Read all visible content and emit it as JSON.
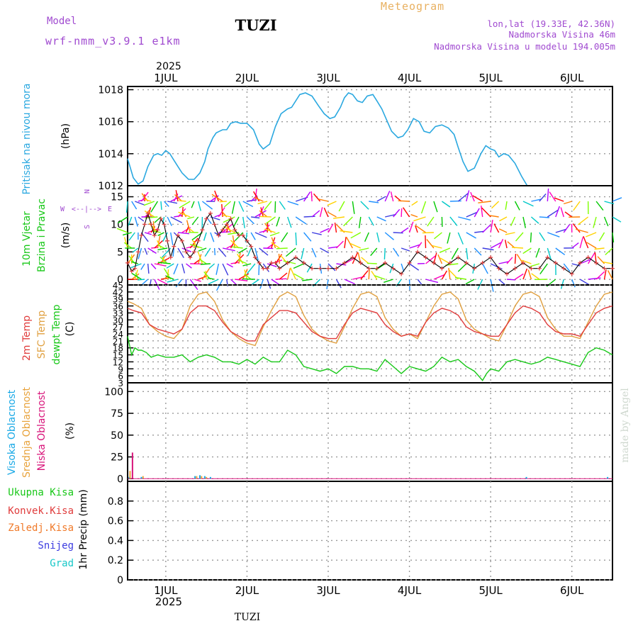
{
  "header": {
    "model_label": "Model",
    "model_name": "wrf-nmm_v3.9.1 e1km",
    "station": "TUZI",
    "product": "Meteogram",
    "lonlat": "lon,lat (19.33E, 42.36N)",
    "elevation": "Nadmorska Visina 46m",
    "model_elevation": "Nadmorska Visina u modelu 194.005m"
  },
  "footer": {
    "station": "TUZI",
    "credit": "made by Angel"
  },
  "colors": {
    "pressure": "#2aa8e0",
    "t2m": "#e03c3c",
    "sfc": "#e0a040",
    "dewpt": "#18c818",
    "cloud_high": "#19a9e6",
    "cloud_mid": "#e8a33c",
    "cloud_low": "#d8147a",
    "precip_total": "#18c818",
    "precip_conv": "#e03c3c",
    "precip_frozen": "#f07a2a",
    "snow": "#3c3ce0",
    "hail": "#18c8c8",
    "header_purple": "#a04ad0",
    "header_gold": "#e8b060"
  },
  "chart_data": [
    {
      "id": "pressure",
      "type": "line",
      "ylabel_lines": [
        "Pritisak na nivou mora",
        "(hPa)"
      ],
      "ylim": [
        1012,
        1018.2
      ],
      "yticks": [
        1012,
        1014,
        1016,
        1018
      ],
      "xlim": [
        0.53,
        6.5
      ],
      "top_year": "2025",
      "top_ticks": [
        "1JUL",
        "2JUL",
        "3JUL",
        "4JUL",
        "5JUL",
        "6JUL"
      ],
      "series": [
        {
          "x": [
            0.53,
            0.6,
            0.66,
            0.72,
            0.78,
            0.85,
            0.9,
            0.95,
            1.0,
            1.05,
            1.1,
            1.15,
            1.2,
            1.28,
            1.35,
            1.42,
            1.48,
            1.52,
            1.58,
            1.62,
            1.66,
            1.7,
            1.75,
            1.8,
            1.86,
            1.92,
            2.0,
            2.08,
            2.15,
            2.2,
            2.28,
            2.35,
            2.42,
            2.5,
            2.55,
            2.6,
            2.65,
            2.72,
            2.8,
            2.88,
            2.95,
            3.02,
            3.08,
            3.15,
            3.2,
            3.25,
            3.3,
            3.36,
            3.42,
            3.48,
            3.55,
            3.6,
            3.66,
            3.72,
            3.78,
            3.86,
            3.92,
            3.98,
            4.05,
            4.12,
            4.18,
            4.25,
            4.32,
            4.4,
            4.48,
            4.55,
            4.6,
            4.66,
            4.72,
            4.8,
            4.88,
            4.94,
            5.0,
            5.05,
            5.1,
            5.16,
            5.22,
            5.3,
            5.38,
            5.45,
            5.5,
            5.55,
            5.6,
            5.66,
            5.72,
            5.8,
            5.88,
            5.94,
            6.0,
            6.06,
            6.12,
            6.2,
            6.28,
            6.36,
            6.42,
            6.5
          ],
          "y": [
            1013.7,
            1012.5,
            1012.1,
            1012.3,
            1013.2,
            1013.9,
            1014.0,
            1013.9,
            1014.2,
            1014.0,
            1013.6,
            1013.2,
            1012.8,
            1012.4,
            1012.4,
            1012.8,
            1013.5,
            1014.3,
            1015.0,
            1015.3,
            1015.4,
            1015.5,
            1015.5,
            1015.9,
            1016.0,
            1015.9,
            1015.9,
            1015.5,
            1014.6,
            1014.3,
            1014.6,
            1015.7,
            1016.5,
            1016.8,
            1016.9,
            1017.3,
            1017.7,
            1017.8,
            1017.6,
            1017.0,
            1016.5,
            1016.2,
            1016.3,
            1016.9,
            1017.5,
            1017.8,
            1017.7,
            1017.3,
            1017.2,
            1017.6,
            1017.7,
            1017.3,
            1016.8,
            1016.1,
            1015.4,
            1015.0,
            1015.1,
            1015.5,
            1016.2,
            1016.0,
            1015.4,
            1015.3,
            1015.7,
            1015.8,
            1015.6,
            1015.2,
            1014.4,
            1013.5,
            1012.9,
            1013.1,
            1014.0,
            1014.5,
            1014.3,
            1014.2,
            1013.8,
            1014.0,
            1013.9,
            1013.4,
            1012.6,
            1012.0,
            1012.0,
            1012.0,
            1012.0,
            1012.0,
            1012.0,
            1012.0,
            1012.0,
            1012.0,
            1012.0,
            1012.0,
            1012.0,
            1012.0,
            1012.0,
            1012.0,
            1012.0,
            1012.0
          ]
        }
      ]
    },
    {
      "id": "wind",
      "type": "line+vectors",
      "ylabel_lines": [
        "10m Vjetar",
        "Brzina i Pravac",
        "(m/s)"
      ],
      "compass": {
        "n": "N",
        "e": "E",
        "w": "W",
        "s": "S",
        "arrow": "<--|-->"
      },
      "ylim": [
        -1,
        17
      ],
      "yticks": [
        0,
        5,
        10,
        15
      ],
      "xlim": [
        0.53,
        6.5
      ],
      "series": [
        {
          "name": "speed",
          "x": [
            0.53,
            0.58,
            0.62,
            0.66,
            0.7,
            0.74,
            0.78,
            0.82,
            0.86,
            0.9,
            0.94,
            0.98,
            1.02,
            1.06,
            1.1,
            1.15,
            1.2,
            1.25,
            1.3,
            1.35,
            1.4,
            1.45,
            1.5,
            1.55,
            1.6,
            1.65,
            1.7,
            1.75,
            1.8,
            1.85,
            1.9,
            1.95,
            2.0,
            2.05,
            2.1,
            2.15,
            2.2,
            2.25,
            2.3,
            2.35,
            2.4,
            2.5,
            2.6,
            2.7,
            2.8,
            2.9,
            3.0,
            3.1,
            3.2,
            3.3,
            3.4,
            3.5,
            3.6,
            3.7,
            3.8,
            3.9,
            4.0,
            4.1,
            4.2,
            4.3,
            4.4,
            4.5,
            4.6,
            4.7,
            4.8,
            4.9,
            5.0,
            5.1,
            5.2,
            5.3,
            5.4,
            5.5,
            5.6,
            5.7,
            5.8,
            5.9,
            6.0,
            6.1,
            6.2,
            6.3,
            6.4,
            6.5
          ],
          "y": [
            3,
            1.5,
            2,
            5,
            8,
            10,
            12,
            10,
            8,
            9,
            11,
            10,
            7,
            4,
            6,
            8,
            7,
            5,
            4,
            5,
            7,
            9,
            11,
            12,
            10,
            8,
            9,
            10,
            11,
            9,
            8,
            8,
            7,
            6,
            4,
            3,
            2,
            2,
            3,
            3,
            2,
            3,
            4,
            3,
            2,
            2,
            2,
            2,
            3,
            4,
            3,
            2,
            2,
            3,
            2,
            1,
            3,
            5,
            4,
            3,
            2,
            3,
            4,
            3,
            2,
            3,
            4,
            2,
            1,
            2,
            3,
            2,
            2,
            4,
            3,
            2,
            1,
            3,
            4,
            3,
            2,
            2
          ]
        }
      ]
    },
    {
      "id": "temperature",
      "type": "line",
      "ylabel_lines": [
        "2m Temp",
        "SFC Temp",
        "dewpt Temp",
        "(C)"
      ],
      "ylim": [
        3,
        45
      ],
      "yticks": [
        3,
        6,
        9,
        12,
        15,
        18,
        21,
        24,
        27,
        30,
        33,
        36,
        39,
        42,
        45
      ],
      "xlim": [
        0.53,
        6.5
      ],
      "series": [
        {
          "name": "t2m",
          "x": [
            0.53,
            0.6,
            0.7,
            0.8,
            0.9,
            1.0,
            1.1,
            1.2,
            1.3,
            1.4,
            1.5,
            1.6,
            1.7,
            1.8,
            1.9,
            2.0,
            2.1,
            2.2,
            2.3,
            2.4,
            2.5,
            2.6,
            2.7,
            2.8,
            2.9,
            3.0,
            3.1,
            3.2,
            3.3,
            3.4,
            3.5,
            3.6,
            3.7,
            3.8,
            3.9,
            4.0,
            4.1,
            4.2,
            4.3,
            4.4,
            4.5,
            4.6,
            4.7,
            4.8,
            4.9,
            5.0,
            5.1,
            5.2,
            5.3,
            5.4,
            5.5,
            5.6,
            5.7,
            5.8,
            5.9,
            6.0,
            6.1,
            6.2,
            6.3,
            6.4,
            6.5
          ],
          "y": [
            35,
            34,
            33,
            28,
            26,
            25,
            24,
            26,
            33,
            36,
            36,
            34,
            29,
            25,
            23,
            21,
            21,
            28,
            31,
            34,
            34,
            33,
            29,
            25,
            23,
            22,
            22,
            28,
            33,
            35,
            34,
            33,
            28,
            25,
            23,
            24,
            23,
            29,
            33,
            35,
            34,
            32,
            27,
            25,
            24,
            23,
            23,
            28,
            33,
            36,
            35,
            33,
            28,
            25,
            24,
            24,
            23,
            28,
            33,
            35,
            36
          ]
        },
        {
          "name": "sfc",
          "x": [
            0.53,
            0.6,
            0.7,
            0.8,
            0.9,
            1.0,
            1.1,
            1.2,
            1.3,
            1.4,
            1.5,
            1.6,
            1.7,
            1.8,
            1.9,
            2.0,
            2.1,
            2.2,
            2.3,
            2.4,
            2.5,
            2.6,
            2.7,
            2.8,
            2.9,
            3.0,
            3.1,
            3.2,
            3.3,
            3.4,
            3.5,
            3.6,
            3.7,
            3.8,
            3.9,
            4.0,
            4.1,
            4.2,
            4.3,
            4.4,
            4.5,
            4.6,
            4.7,
            4.8,
            4.9,
            5.0,
            5.1,
            5.2,
            5.3,
            5.4,
            5.5,
            5.6,
            5.7,
            5.8,
            5.9,
            6.0,
            6.1,
            6.2,
            6.3,
            6.4,
            6.5
          ],
          "y": [
            38,
            37,
            35,
            28,
            25,
            23,
            22,
            26,
            36,
            41,
            42,
            38,
            30,
            25,
            22,
            20,
            19,
            27,
            34,
            40,
            42,
            40,
            32,
            26,
            23,
            21,
            20,
            27,
            35,
            41,
            42,
            40,
            31,
            26,
            23,
            24,
            22,
            29,
            36,
            41,
            42,
            39,
            30,
            26,
            24,
            22,
            21,
            28,
            36,
            41,
            42,
            40,
            31,
            26,
            23,
            23,
            22,
            29,
            36,
            41,
            42
          ]
        },
        {
          "name": "dewpt",
          "x": [
            0.53,
            0.58,
            0.62,
            0.66,
            0.7,
            0.76,
            0.82,
            0.9,
            1.0,
            1.1,
            1.2,
            1.3,
            1.4,
            1.5,
            1.6,
            1.7,
            1.8,
            1.9,
            2.0,
            2.1,
            2.2,
            2.3,
            2.4,
            2.5,
            2.6,
            2.7,
            2.8,
            2.9,
            3.0,
            3.1,
            3.2,
            3.3,
            3.4,
            3.5,
            3.6,
            3.7,
            3.8,
            3.9,
            4.0,
            4.1,
            4.2,
            4.3,
            4.4,
            4.5,
            4.6,
            4.7,
            4.8,
            4.85,
            4.9,
            4.95,
            5.0,
            5.1,
            5.2,
            5.3,
            5.4,
            5.5,
            5.6,
            5.7,
            5.8,
            5.9,
            6.0,
            6.1,
            6.2,
            6.3,
            6.4,
            6.5
          ],
          "y": [
            23,
            15,
            18,
            17,
            17,
            16,
            14,
            15,
            14,
            14,
            15,
            12,
            14,
            15,
            14,
            12,
            12,
            11,
            13,
            11,
            14,
            12,
            12,
            17,
            15,
            10,
            9,
            8,
            9,
            7,
            10,
            10,
            9,
            9,
            8,
            13,
            10,
            7,
            10,
            9,
            8,
            10,
            14,
            12,
            13,
            10,
            8,
            6,
            4,
            7,
            9,
            8,
            12,
            13,
            12,
            11,
            12,
            14,
            13,
            12,
            11,
            10,
            16,
            18,
            17,
            15
          ]
        }
      ]
    },
    {
      "id": "cloud",
      "type": "bar",
      "ylabel_lines": [
        "Visoka Oblacnost",
        "Srednja Oblacnost",
        "Niska Oblacnost",
        "(%)"
      ],
      "ylim": [
        -3,
        110
      ],
      "yticks": [
        0,
        25,
        50,
        75,
        100
      ],
      "xlim": [
        0.53,
        6.5
      ],
      "series": [
        {
          "name": "high",
          "x": [
            0.55,
            0.7,
            1.36,
            1.42,
            1.48,
            1.55,
            5.44,
            6.44
          ],
          "values": [
            2,
            2,
            3,
            4,
            3,
            2,
            2,
            2
          ]
        },
        {
          "name": "mid",
          "x": [
            0.56,
            0.72,
            1.38,
            1.44,
            1.5
          ],
          "values": [
            9,
            3,
            3,
            3,
            2
          ]
        },
        {
          "name": "low",
          "x": [
            0.59
          ],
          "values": [
            30
          ]
        }
      ]
    },
    {
      "id": "precip",
      "type": "bar",
      "ylabel_lines": [
        "1hr Precip (mm)"
      ],
      "legend": [
        "Ukupna Kisa",
        "Konvek.Kisa",
        "Zaledj.Kisa",
        "Snijeg",
        "Grad"
      ],
      "ylim": [
        0,
        1
      ],
      "yticks": [
        0,
        0.2,
        0.4,
        0.6,
        0.8
      ],
      "ytick_labels": [
        "0",
        "0.2",
        "0.4",
        "0.6",
        "0.8"
      ],
      "xlim": [
        0.53,
        6.5
      ],
      "bottom_ticks": [
        "1JUL",
        "2JUL",
        "3JUL",
        "4JUL",
        "5JUL",
        "6JUL"
      ],
      "bottom_year": "2025",
      "series": []
    }
  ]
}
